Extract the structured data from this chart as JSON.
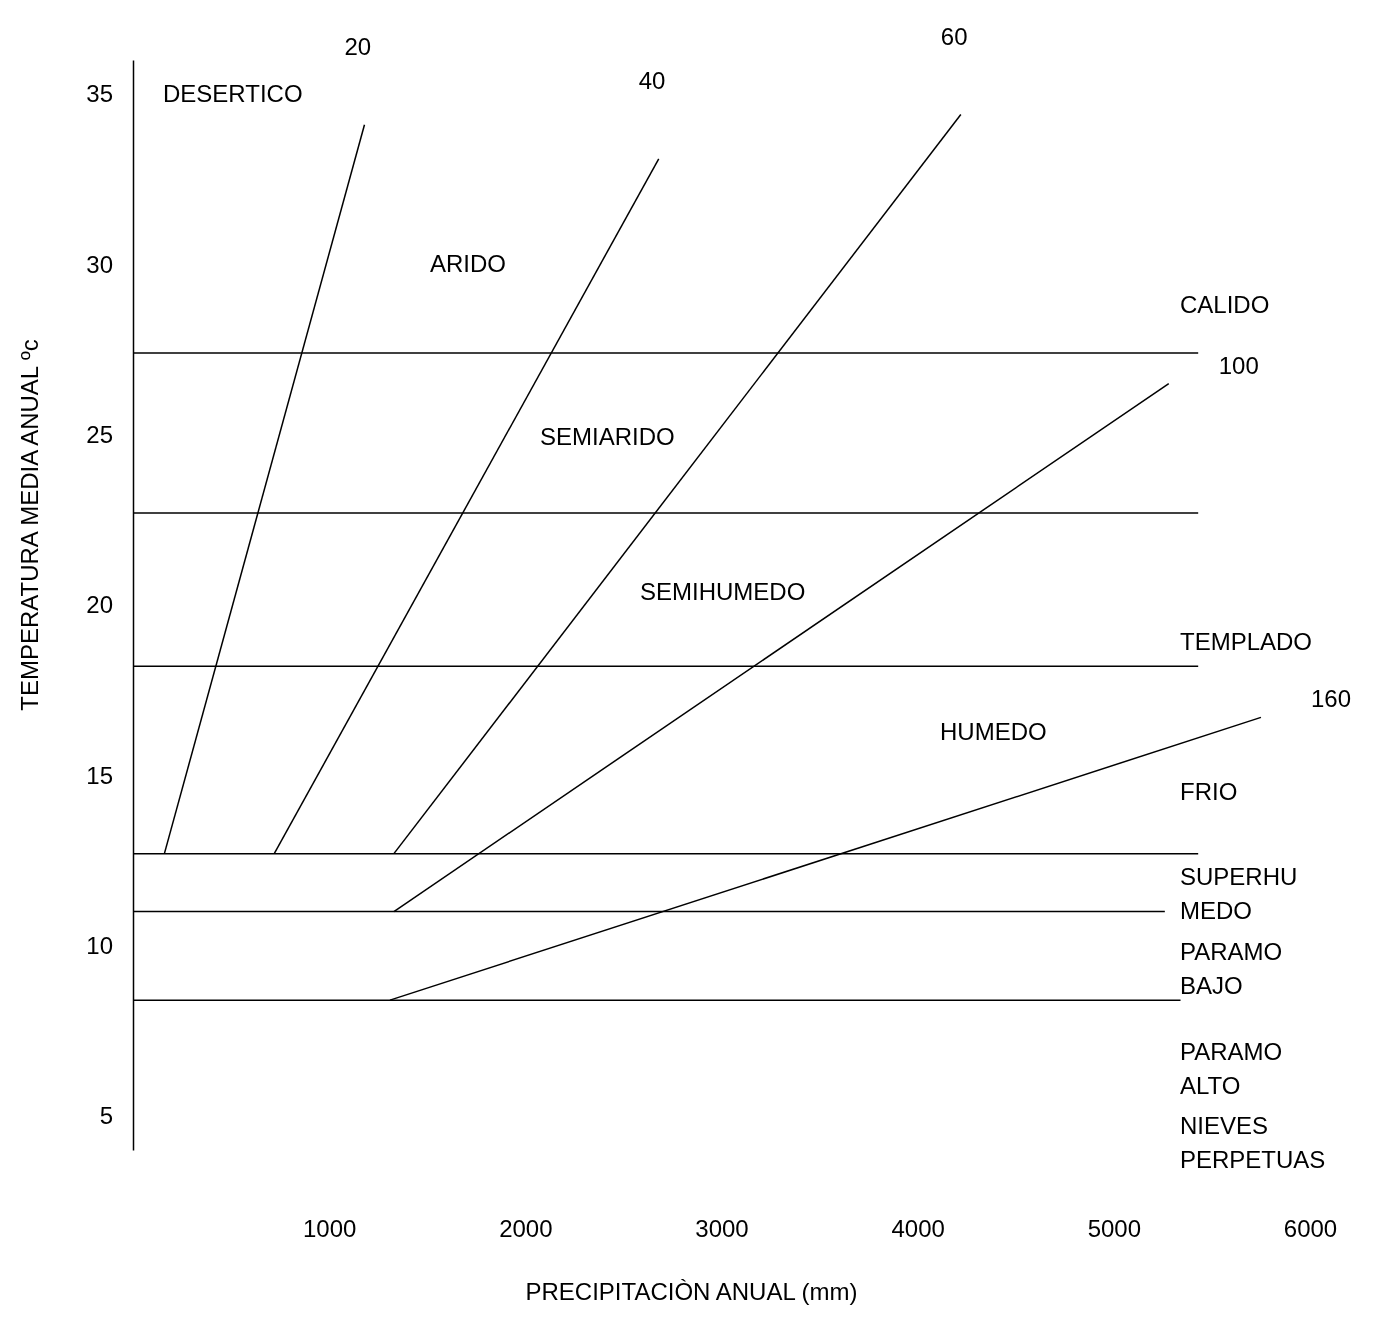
{
  "chart_data": {
    "type": "line",
    "xlabel": "PRECIPITACIÒN ANUAL (mm)",
    "ylabel": "TEMPERATURA MEDIA ANUAL ºc",
    "xlim": [
      0,
      6000
    ],
    "xticks": [
      1000,
      2000,
      3000,
      4000,
      5000,
      6000
    ],
    "ylim": [
      4,
      36
    ],
    "yticks": [
      5,
      10,
      15,
      20,
      25,
      30,
      35
    ],
    "grid": false,
    "legend": false,
    "marker": "none",
    "line_style": "solid",
    "series": [
      {
        "name": "20",
        "color": "#000000",
        "x": [
          160,
          1180
        ],
        "values": [
          12.7,
          34.1
        ]
      },
      {
        "name": "40",
        "color": "#000000",
        "x": [
          720,
          2680
        ],
        "values": [
          12.7,
          33.1
        ]
      },
      {
        "name": "60",
        "color": "#000000",
        "x": [
          1330,
          4220
        ],
        "values": [
          12.7,
          34.4
        ]
      },
      {
        "name": "100",
        "color": "#000000",
        "x": [
          1330,
          5280
        ],
        "values": [
          11.0,
          26.5
        ]
      },
      {
        "name": "160",
        "color": "#000000",
        "x": [
          1310,
          5750
        ],
        "values": [
          8.4,
          16.7
        ]
      },
      {
        "color": "#000000",
        "x": [
          0,
          5430
        ],
        "values": [
          27.4,
          27.4
        ]
      },
      {
        "color": "#000000",
        "x": [
          0,
          5430
        ],
        "values": [
          22.7,
          22.7
        ]
      },
      {
        "color": "#000000",
        "x": [
          0,
          5430
        ],
        "values": [
          18.2,
          18.2
        ]
      },
      {
        "color": "#000000",
        "x": [
          0,
          5430
        ],
        "values": [
          12.7,
          12.7
        ]
      },
      {
        "color": "#000000",
        "x": [
          0,
          5260
        ],
        "values": [
          11.0,
          11.0
        ]
      },
      {
        "color": "#000000",
        "x": [
          0,
          5340
        ],
        "values": [
          8.4,
          8.4
        ]
      }
    ],
    "annotations": [
      "DESERTICO",
      "ARIDO",
      "SEMIARIDO",
      "SEMIHUMEDO",
      "HUMEDO",
      "CALIDO",
      "TEMPLADO",
      "FRIO",
      "SUPERHU\nMEDO",
      "PARAMO\nBAJO",
      "PARAMO\nALTO",
      "NIEVES\nPERPETUAS"
    ]
  }
}
